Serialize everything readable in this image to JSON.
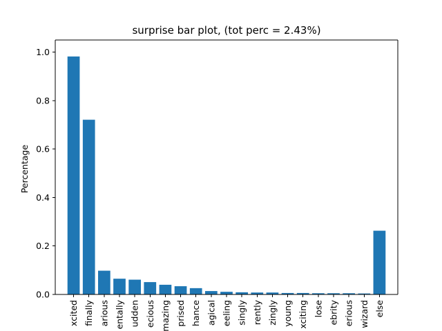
{
  "chart_data": {
    "type": "bar",
    "title": "surprise bar plot, (tot perc = 2.43%)",
    "xlabel": "",
    "ylabel": "Percentage",
    "ylim": [
      0,
      1.05
    ],
    "grid": false,
    "bar_color": "#1f77b4",
    "y_ticks": [
      "0.0",
      "0.2",
      "0.4",
      "0.6",
      "0.8",
      "1.0"
    ],
    "y_tick_values": [
      0,
      0.2,
      0.4,
      0.6,
      0.8,
      1.0
    ],
    "categories": [
      "xcited",
      "finally",
      "arious",
      "entally",
      "udden",
      "ecious",
      "mazing",
      "prised",
      "hance",
      "agical",
      "eeling",
      "singly",
      "rently",
      "zingly",
      "young",
      "xciting",
      "lose",
      "ebrity",
      "erious",
      "wizard",
      "else"
    ],
    "values": [
      0.982,
      0.721,
      0.098,
      0.065,
      0.061,
      0.051,
      0.04,
      0.034,
      0.026,
      0.014,
      0.011,
      0.009,
      0.008,
      0.008,
      0.006,
      0.006,
      0.005,
      0.005,
      0.005,
      0.004,
      0.263
    ]
  }
}
